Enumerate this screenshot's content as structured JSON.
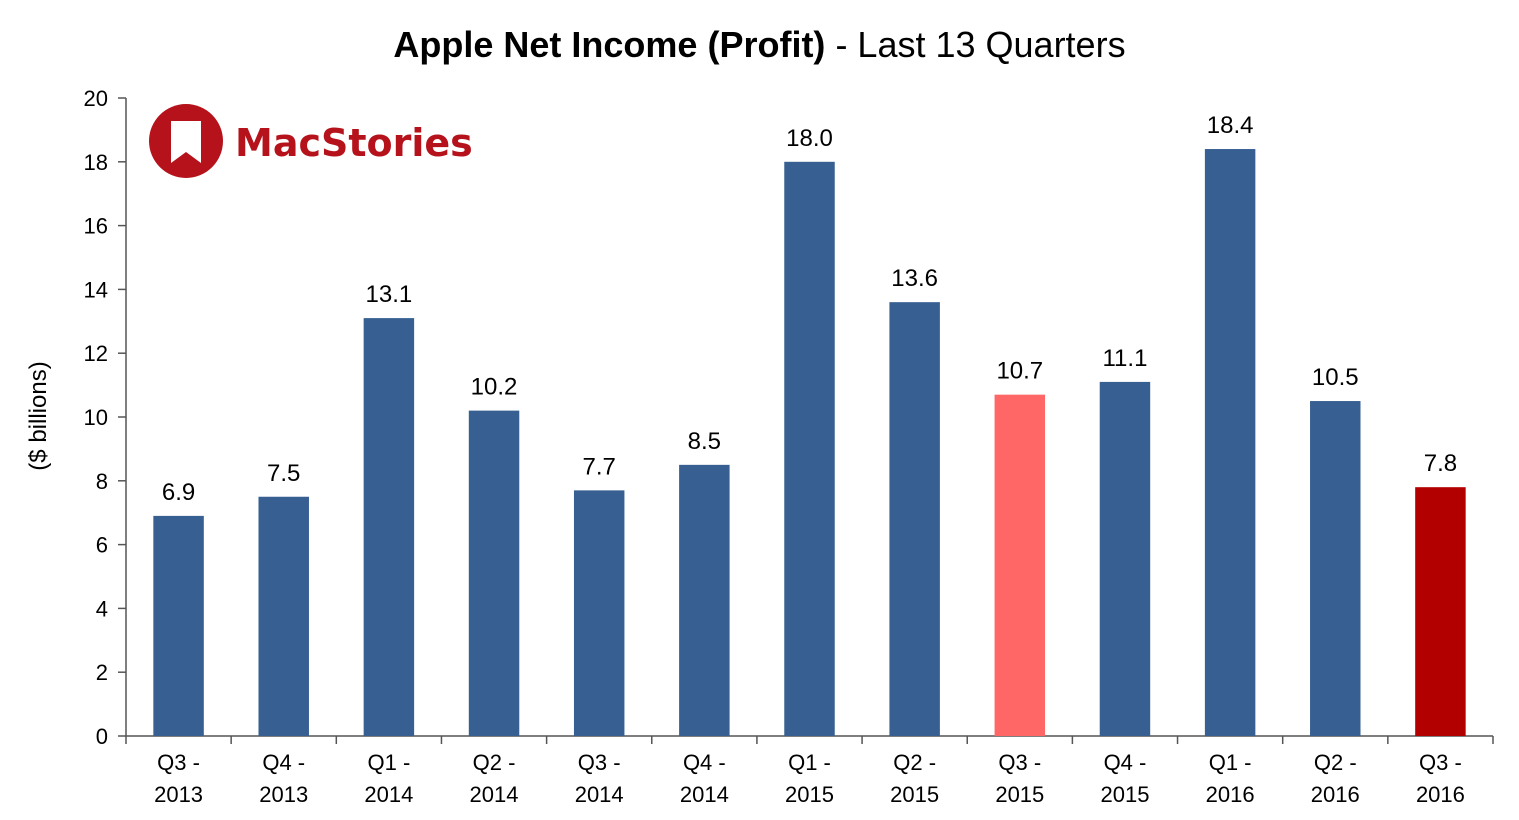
{
  "chart_data": {
    "type": "bar",
    "title_bold": "Apple Net Income (Profit)",
    "title_rest": " - Last 13 Quarters",
    "xlabel": "",
    "ylabel": "($ billions)",
    "ylim": [
      0,
      20
    ],
    "yticks": [
      0,
      2,
      4,
      6,
      8,
      10,
      12,
      14,
      16,
      18,
      20
    ],
    "grid": false,
    "categories": [
      [
        "Q3 -",
        "2013"
      ],
      [
        "Q4 -",
        "2013"
      ],
      [
        "Q1 -",
        "2014"
      ],
      [
        "Q2 -",
        "2014"
      ],
      [
        "Q3 -",
        "2014"
      ],
      [
        "Q4 -",
        "2014"
      ],
      [
        "Q1 -",
        "2015"
      ],
      [
        "Q2 -",
        "2015"
      ],
      [
        "Q3 -",
        "2015"
      ],
      [
        "Q4 -",
        "2015"
      ],
      [
        "Q1 -",
        "2016"
      ],
      [
        "Q2 -",
        "2016"
      ],
      [
        "Q3 -",
        "2016"
      ]
    ],
    "values": [
      6.9,
      7.5,
      13.1,
      10.2,
      7.7,
      8.5,
      18.0,
      13.6,
      10.7,
      11.1,
      18.4,
      10.5,
      7.8
    ],
    "data_labels": [
      "6.9",
      "7.5",
      "13.1",
      "10.2",
      "7.7",
      "8.5",
      "18.0",
      "13.6",
      "10.7",
      "11.1",
      "18.4",
      "10.5",
      "7.8"
    ],
    "bar_colors": [
      "#375f91",
      "#375f91",
      "#375f91",
      "#375f91",
      "#375f91",
      "#375f91",
      "#375f91",
      "#375f91",
      "#ff6666",
      "#375f91",
      "#375f91",
      "#375f91",
      "#b20000"
    ]
  },
  "logo": {
    "text": "MacStories",
    "color": "#b5121b"
  }
}
